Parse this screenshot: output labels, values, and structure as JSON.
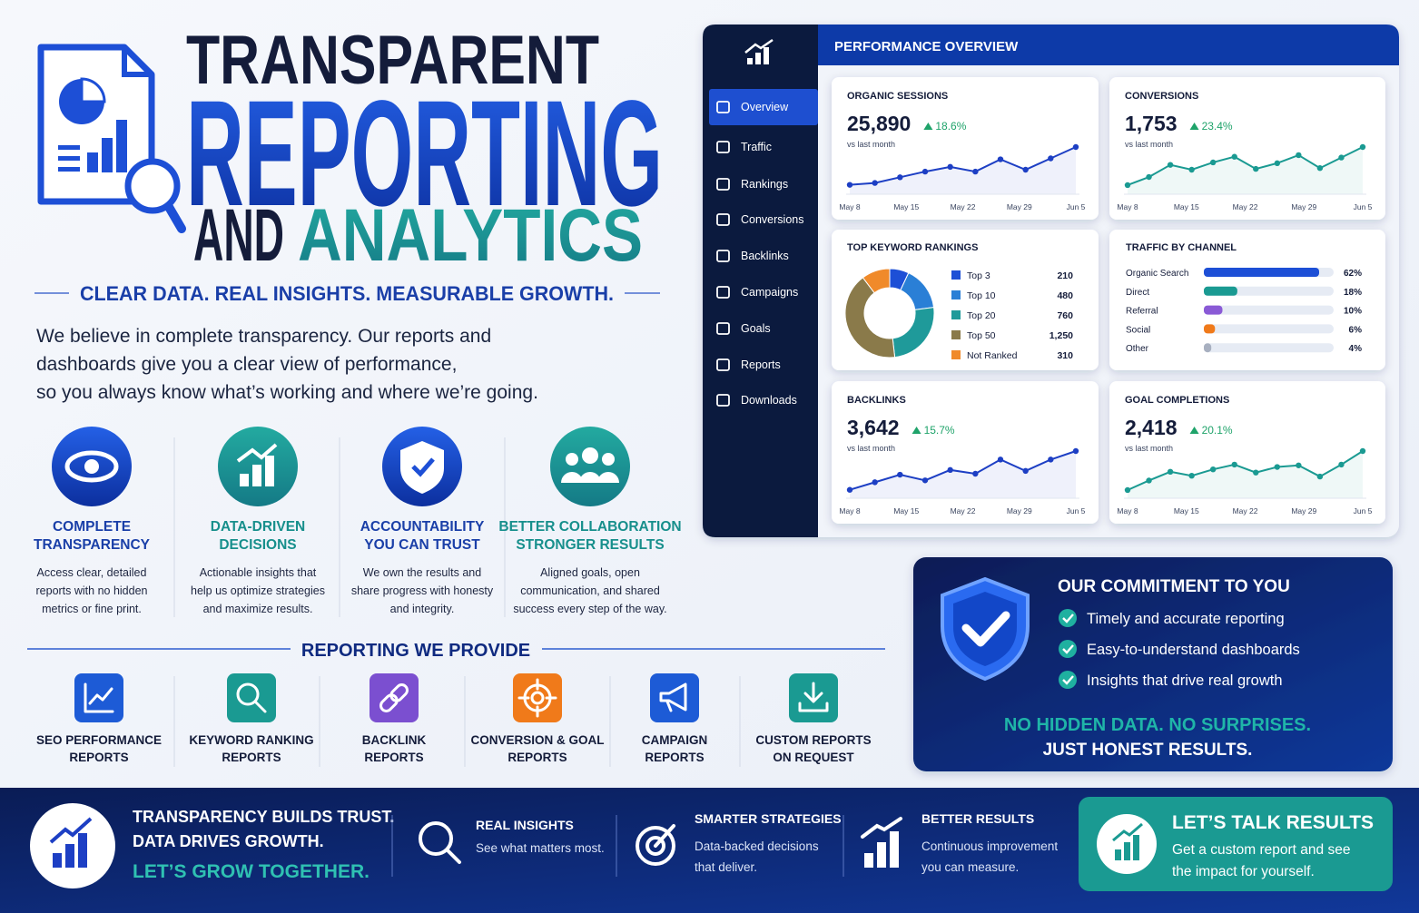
{
  "header": {
    "title_top": "TRANSPARENT",
    "title_main": "REPORTING",
    "title_and": "AND",
    "title_end": "ANALYTICS",
    "tagline": "CLEAR DATA. REAL INSIGHTS. MEASURABLE GROWTH.",
    "intro": [
      "We believe in complete transparency. Our reports and",
      "dashboards give you a clear view of performance,",
      "so you always know what’s working and where we’re going."
    ]
  },
  "pillars": [
    {
      "title": [
        "COMPLETE",
        "TRANSPARENCY"
      ],
      "text": [
        "Access clear, detailed",
        "reports with no hidden",
        "metrics or fine print."
      ]
    },
    {
      "title": [
        "DATA-DRIVEN",
        "DECISIONS"
      ],
      "text": [
        "Actionable insights that",
        "help us optimize strategies",
        "and maximize results."
      ]
    },
    {
      "title": [
        "ACCOUNTABILITY",
        "YOU CAN TRUST"
      ],
      "text": [
        "We own the results and",
        "share progress with honesty",
        "and integrity."
      ]
    },
    {
      "title": [
        "BETTER COLLABORATION",
        "STRONGER RESULTS"
      ],
      "text": [
        "Aligned goals, open",
        "communication, and shared",
        "success every step of the way."
      ]
    }
  ],
  "reporting": {
    "title": "REPORTING WE PROVIDE",
    "items": [
      [
        "SEO PERFORMANCE",
        "REPORTS"
      ],
      [
        "KEYWORD RANKING",
        "REPORTS"
      ],
      [
        "BACKLINK",
        "REPORTS"
      ],
      [
        "CONVERSION & GOAL",
        "REPORTS"
      ],
      [
        "CAMPAIGN",
        "REPORTS"
      ],
      [
        "CUSTOM REPORTS",
        "ON REQUEST"
      ]
    ]
  },
  "dashboard": {
    "title": "PERFORMANCE OVERVIEW",
    "nav": [
      "Overview",
      "Traffic",
      "Rankings",
      "Conversions",
      "Backlinks",
      "Campaigns",
      "Goals",
      "Reports",
      "Downloads"
    ],
    "kpis": [
      {
        "title": "ORGANIC SESSIONS",
        "value": "25,890",
        "change": "18.6%",
        "note": "vs last month",
        "x": [
          "May 8",
          "May 15",
          "May 22",
          "May 29",
          "Jun 5"
        ],
        "trend": [
          8,
          10,
          16,
          22,
          27,
          22,
          35,
          24,
          36,
          48
        ],
        "color": "#1d3fc4"
      },
      {
        "title": "CONVERSIONS",
        "value": "1,753",
        "change": "23.4%",
        "note": "vs last month",
        "x": [
          "May 8",
          "May 15",
          "May 22",
          "May 29",
          "Jun 5"
        ],
        "trend": [
          9,
          19,
          34,
          28,
          37,
          44,
          29,
          36,
          46,
          30,
          43,
          56
        ],
        "color": "#1a9a92"
      },
      {
        "title": "BACKLINKS",
        "value": "3,642",
        "change": "15.7%",
        "note": "vs last month",
        "x": [
          "May 8",
          "May 15",
          "May 22",
          "May 29",
          "Jun 5"
        ],
        "trend": [
          7,
          15,
          23,
          17,
          28,
          24,
          39,
          27,
          39,
          48
        ],
        "color": "#1d3fc4"
      },
      {
        "title": "GOAL COMPLETIONS",
        "value": "2,418",
        "change": "20.1%",
        "note": "vs last month",
        "x": [
          "May 8",
          "May 15",
          "May 22",
          "May 29",
          "Jun 5"
        ],
        "trend": [
          8,
          20,
          31,
          26,
          34,
          40,
          30,
          37,
          39,
          25,
          40,
          57
        ],
        "color": "#1a9a92"
      }
    ],
    "keywords": {
      "type": "pie",
      "title": "TOP KEYWORD RANKINGS",
      "categories": [
        "Top 3",
        "Top 10",
        "Top 20",
        "Top 50",
        "Not Ranked"
      ],
      "values": [
        210,
        480,
        760,
        1250,
        310
      ],
      "value_labels": [
        "210",
        "480",
        "760",
        "1,250",
        "310"
      ],
      "colors": [
        "#1d4fd6",
        "#2a7fd6",
        "#1f9a9a",
        "#8a7a4a",
        "#f08a2a"
      ]
    },
    "channels": {
      "type": "bar",
      "title": "TRAFFIC BY CHANNEL",
      "categories": [
        "Organic Search",
        "Direct",
        "Referral",
        "Social",
        "Other"
      ],
      "values": [
        62,
        18,
        10,
        6,
        4
      ],
      "value_labels": [
        "62%",
        "18%",
        "10%",
        "6%",
        "4%"
      ],
      "colors": [
        "#1d4fd6",
        "#1a9a92",
        "#8a5ad6",
        "#f07a1a",
        "#a8b0c0"
      ]
    }
  },
  "commitment": {
    "title": "OUR COMMITMENT TO YOU",
    "points": [
      "Timely and accurate reporting",
      "Easy-to-understand dashboards",
      "Insights that drive real growth"
    ],
    "closing": [
      "NO HIDDEN DATA. NO SURPRISES.",
      "JUST HONEST RESULTS."
    ]
  },
  "footer": {
    "message": [
      "TRANSPARENCY BUILDS TRUST.",
      "DATA DRIVES GROWTH."
    ],
    "call": "LET’S GROW TOGETHER.",
    "items": [
      {
        "title": "REAL INSIGHTS",
        "text": [
          "See what matters most."
        ]
      },
      {
        "title": "SMARTER STRATEGIES",
        "text": [
          "Data-backed decisions",
          "that deliver."
        ]
      },
      {
        "title": "BETTER RESULTS",
        "text": [
          "Continuous improvement",
          "you can measure."
        ]
      }
    ],
    "cta": {
      "title": "LET’S TALK RESULTS",
      "text": [
        "Get a custom report and see",
        "the impact for yourself."
      ]
    }
  }
}
